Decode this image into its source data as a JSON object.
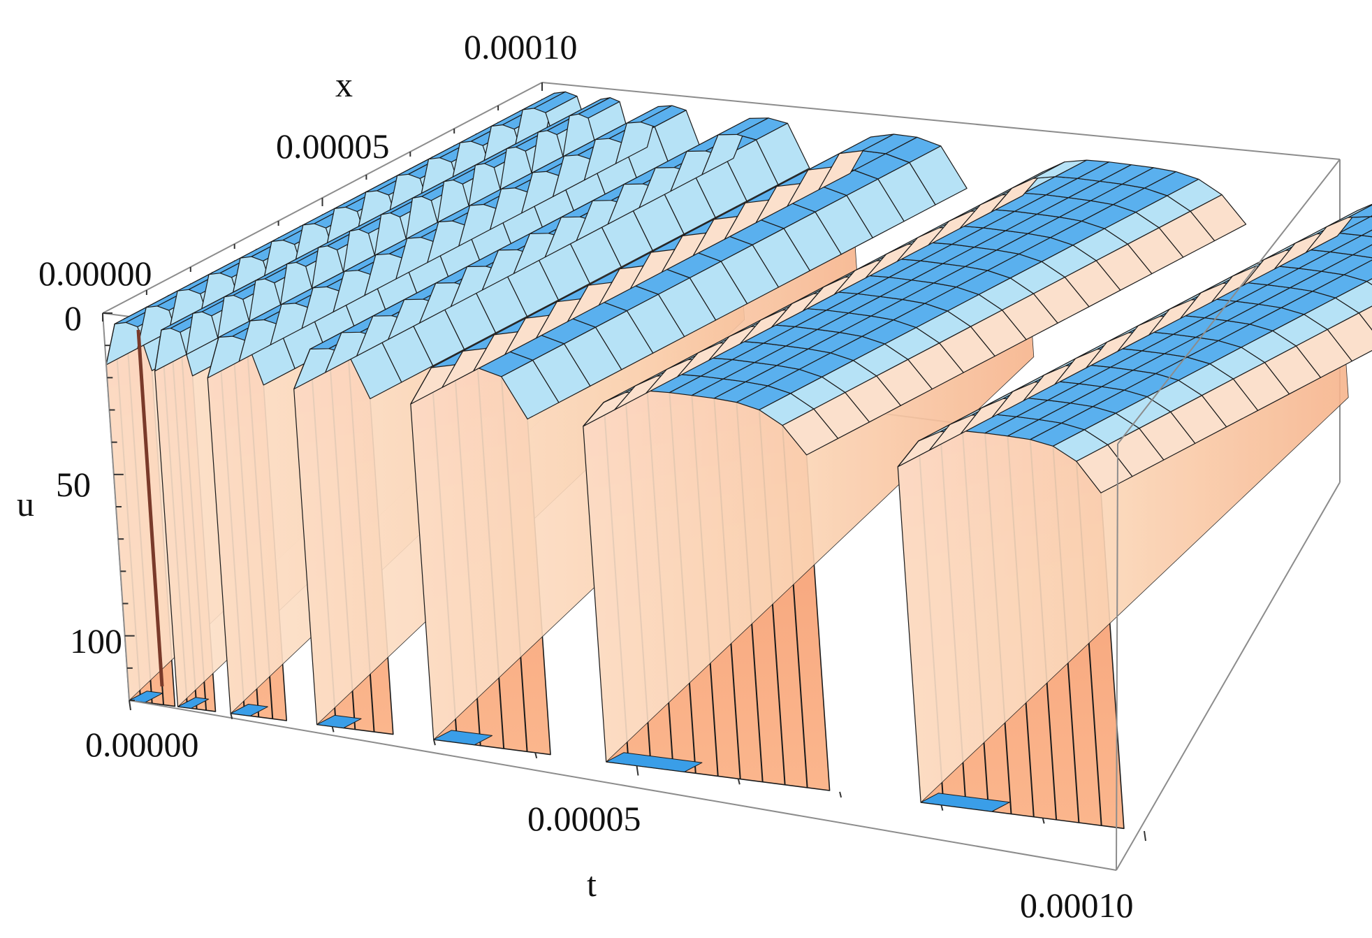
{
  "chart_data": {
    "type": "surface3d",
    "title": "",
    "axes": {
      "t": {
        "label": "t",
        "range": [
          0.0,
          0.0001
        ],
        "ticks": [
          "0.00000",
          "0.00005",
          "0.00010"
        ]
      },
      "x": {
        "label": "x",
        "range": [
          0.0,
          0.0001
        ],
        "ticks": [
          "0.00000",
          "0.00005",
          "0.00010"
        ]
      },
      "u": {
        "label": "u",
        "range": [
          0,
          120
        ],
        "ticks": [
          "0",
          "50",
          "100"
        ],
        "direction": "downward"
      }
    },
    "arches": [
      {
        "t_start": 0.0,
        "t_end": 4.5e-06
      },
      {
        "t_start": 4.8e-06,
        "t_end": 8.5e-06
      },
      {
        "t_start": 1e-05,
        "t_end": 1.55e-05
      },
      {
        "t_start": 1.85e-05,
        "t_end": 2.6e-05
      },
      {
        "t_start": 3e-05,
        "t_end": 4.15e-05
      },
      {
        "t_start": 4.7e-05,
        "t_end": 6.9e-05
      },
      {
        "t_start": 7.8e-05,
        "t_end": 9.8e-05
      }
    ],
    "u_dip_depth": 120,
    "grid": false,
    "colors": {
      "surface_top": "#3aa0ea",
      "surface_side": "#f6ad82",
      "surface_highlight": "#f36a6a",
      "surface_back": "#6a52c8",
      "box": "#8c8c8c"
    }
  }
}
